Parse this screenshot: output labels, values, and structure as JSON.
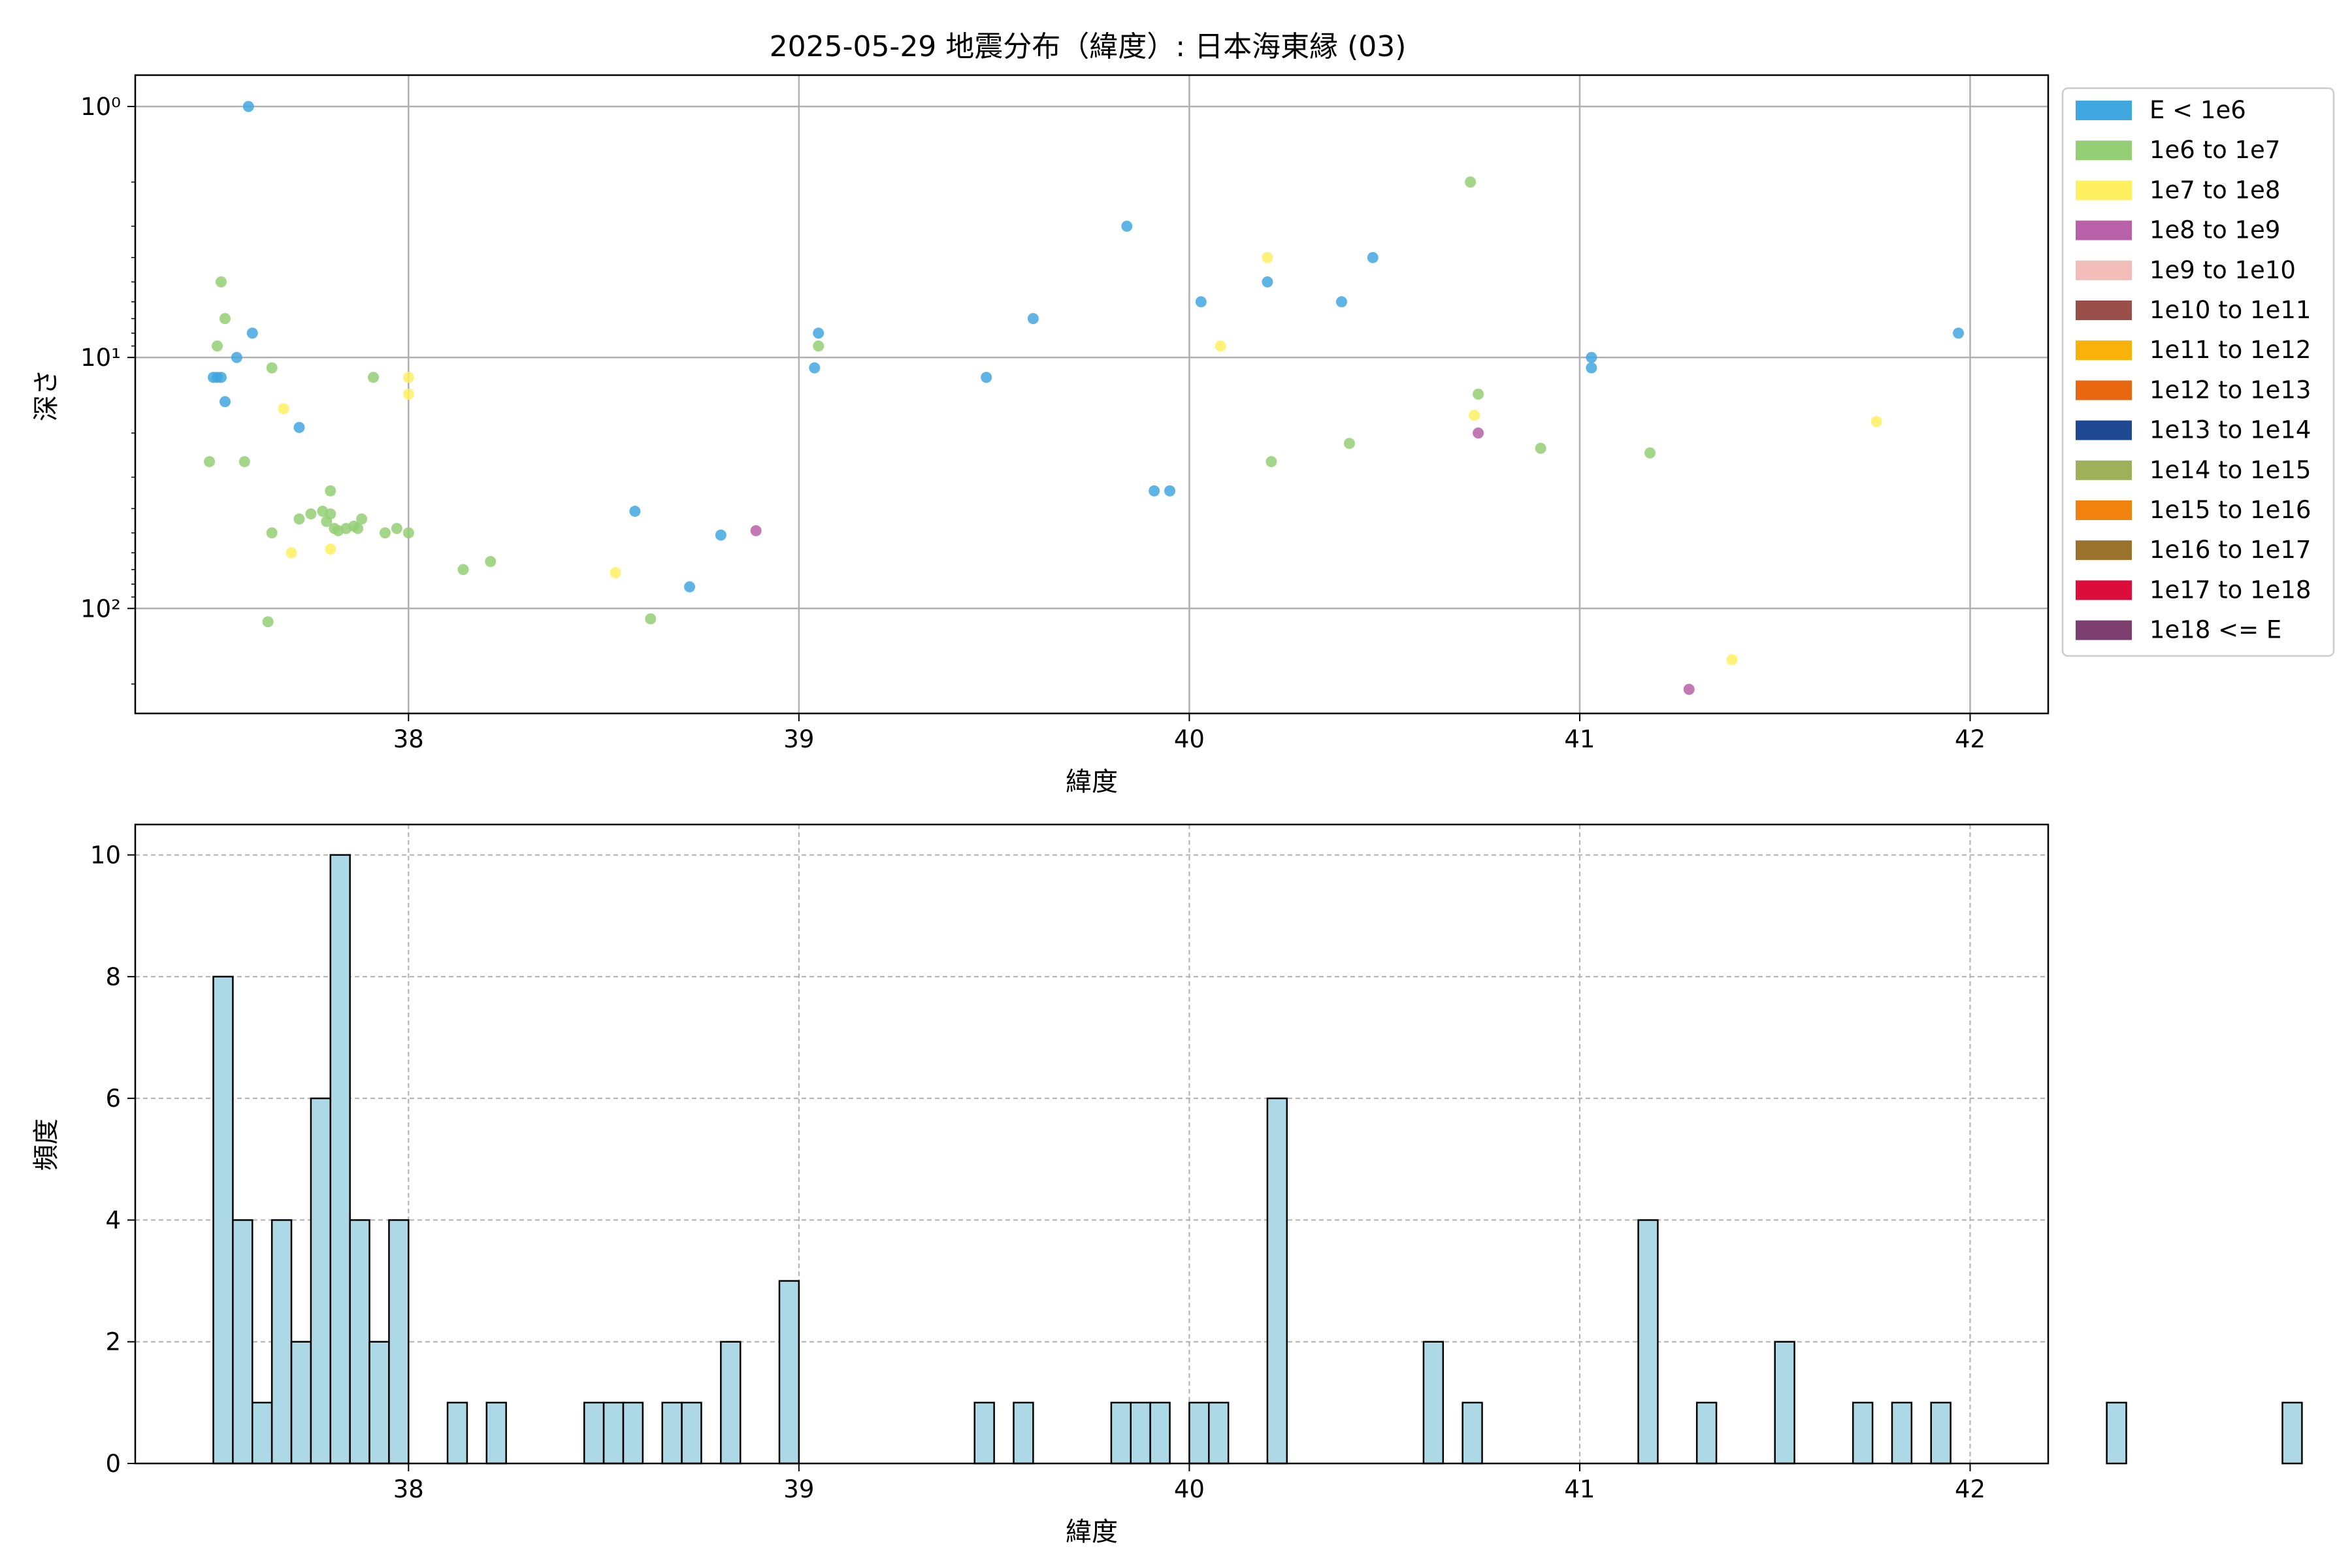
{
  "chart_data": [
    {
      "type": "scatter",
      "title": "2025-05-29 地震分布（緯度）: 日本海東縁 (03)",
      "xlabel": "緯度",
      "ylabel": "深さ",
      "xlim": [
        37.3,
        42.2
      ],
      "ylim": [
        262,
        0.75
      ],
      "yscale": "log",
      "y_inverted": true,
      "x_ticks": [
        "38",
        "39",
        "40",
        "41",
        "42"
      ],
      "y_ticks": [
        "10⁰",
        "10¹",
        "10²"
      ],
      "grid": true,
      "legend_placement": "outside-right",
      "legend": [
        {
          "label": "E < 1e6",
          "color": "#41a7e0"
        },
        {
          "label": "1e6 to 1e7",
          "color": "#94cf76"
        },
        {
          "label": "1e7 to 1e8",
          "color": "#fff061"
        },
        {
          "label": "1e8 to 1e9",
          "color": "#b860a8"
        },
        {
          "label": "1e9 to 1e10",
          "color": "#f2bdb8"
        },
        {
          "label": "1e10 to 1e11",
          "color": "#9a4e4a"
        },
        {
          "label": "1e11 to 1e12",
          "color": "#f9b209"
        },
        {
          "label": "1e12 to 1e13",
          "color": "#ea6712"
        },
        {
          "label": "1e13 to 1e14",
          "color": "#1f4893"
        },
        {
          "label": "1e14 to 1e15",
          "color": "#9fb05b"
        },
        {
          "label": "1e15 to 1e16",
          "color": "#f2820e"
        },
        {
          "label": "1e16 to 1e17",
          "color": "#9b722c"
        },
        {
          "label": "1e17 to 1e18",
          "color": "#dc0d3b"
        },
        {
          "label": "1e18 <= E",
          "color": "#7b3e6f"
        }
      ],
      "series": [
        {
          "class": 0,
          "points": [
            [
              37.59,
              1.0
            ],
            [
              37.52,
              12
            ],
            [
              37.53,
              15
            ],
            [
              37.5,
              12
            ],
            [
              37.51,
              12
            ],
            [
              37.6,
              8
            ],
            [
              37.56,
              10
            ],
            [
              37.72,
              19
            ],
            [
              38.58,
              41
            ],
            [
              38.8,
              51
            ],
            [
              38.72,
              82
            ],
            [
              39.05,
              8
            ],
            [
              39.04,
              11
            ],
            [
              39.48,
              12
            ],
            [
              39.6,
              7
            ],
            [
              39.84,
              3
            ],
            [
              39.91,
              34
            ],
            [
              39.95,
              34
            ],
            [
              40.03,
              6
            ],
            [
              40.2,
              5
            ],
            [
              40.39,
              6
            ],
            [
              40.47,
              4
            ],
            [
              41.03,
              10
            ],
            [
              41.03,
              11
            ],
            [
              41.97,
              8
            ]
          ]
        },
        {
          "class": 1,
          "points": [
            [
              37.52,
              5
            ],
            [
              37.53,
              7
            ],
            [
              37.51,
              9
            ],
            [
              37.65,
              11
            ],
            [
              37.49,
              26
            ],
            [
              37.58,
              26
            ],
            [
              37.65,
              50
            ],
            [
              37.64,
              113
            ],
            [
              37.72,
              44
            ],
            [
              37.75,
              42
            ],
            [
              37.78,
              41
            ],
            [
              37.8,
              42
            ],
            [
              37.8,
              34
            ],
            [
              37.79,
              45
            ],
            [
              37.82,
              49
            ],
            [
              37.84,
              48
            ],
            [
              37.86,
              47
            ],
            [
              37.87,
              48
            ],
            [
              37.88,
              44
            ],
            [
              37.81,
              48
            ],
            [
              37.94,
              50
            ],
            [
              37.97,
              48
            ],
            [
              38.0,
              50
            ],
            [
              37.91,
              12
            ],
            [
              38.14,
              70
            ],
            [
              38.21,
              65
            ],
            [
              38.62,
              110
            ],
            [
              39.05,
              9
            ],
            [
              40.21,
              26
            ],
            [
              40.41,
              22
            ],
            [
              40.72,
              2
            ],
            [
              40.74,
              14
            ],
            [
              40.9,
              23
            ],
            [
              41.18,
              24
            ]
          ]
        },
        {
          "class": 2,
          "points": [
            [
              37.68,
              16
            ],
            [
              37.7,
              60
            ],
            [
              37.8,
              58
            ],
            [
              38.0,
              12
            ],
            [
              38.0,
              14
            ],
            [
              38.53,
              72
            ],
            [
              40.08,
              9
            ],
            [
              40.2,
              4
            ],
            [
              40.73,
              17
            ],
            [
              41.39,
              160
            ],
            [
              41.76,
              18
            ]
          ]
        },
        {
          "class": 3,
          "points": [
            [
              38.89,
              49
            ],
            [
              40.74,
              20
            ],
            [
              41.28,
              210
            ]
          ]
        }
      ]
    },
    {
      "type": "bar",
      "xlabel": "緯度",
      "ylabel": "頻度",
      "xlim": [
        37.3,
        42.2
      ],
      "ylim": [
        0,
        10.5
      ],
      "x_ticks": [
        "38",
        "39",
        "40",
        "41",
        "42"
      ],
      "y_ticks": [
        "0",
        "2",
        "4",
        "6",
        "8",
        "10"
      ],
      "grid": true,
      "bin_start": 37.5,
      "bin_width": 0.05,
      "bin_counts": [
        8,
        4,
        1,
        4,
        2,
        6,
        10,
        4,
        2,
        4,
        0,
        0,
        1,
        0,
        1,
        0,
        0,
        0,
        0,
        1,
        1,
        1,
        0,
        1,
        1,
        0,
        2,
        0,
        0,
        3,
        0,
        0,
        0,
        0,
        0,
        0,
        0,
        0,
        0,
        1,
        0,
        1,
        0,
        0,
        0,
        0,
        1,
        1,
        1,
        0,
        1,
        1,
        0,
        0,
        6,
        0,
        0,
        0,
        0,
        0,
        0,
        0,
        2,
        0,
        1,
        0,
        0,
        0,
        0,
        0,
        0,
        0,
        0,
        4,
        0,
        0,
        1,
        0,
        0,
        0,
        2,
        0,
        0,
        0,
        1,
        0,
        1,
        0,
        1,
        0,
        0,
        0,
        0,
        0,
        0,
        0,
        0,
        1,
        0,
        0,
        0,
        0,
        0,
        0,
        0,
        0,
        1
      ]
    }
  ]
}
